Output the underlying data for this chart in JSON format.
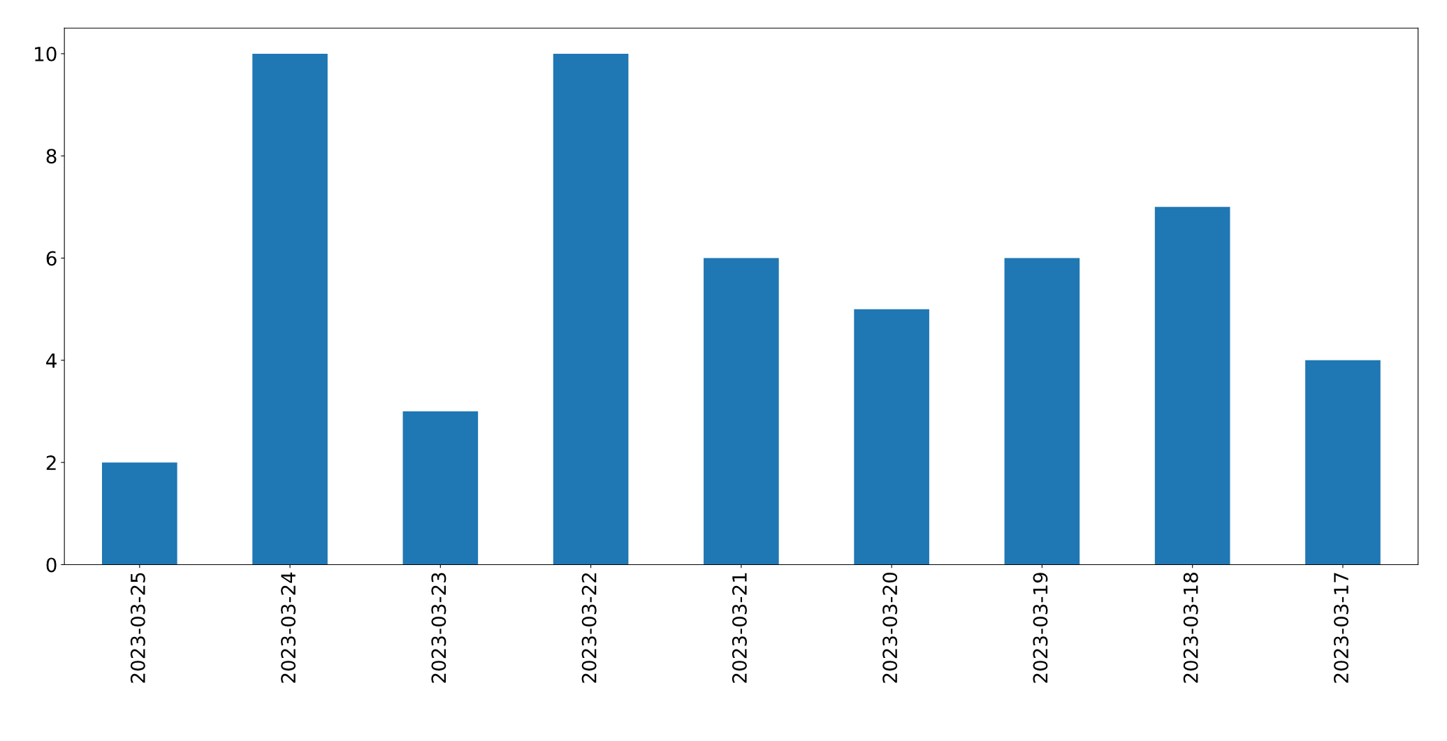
{
  "chart_data": {
    "type": "bar",
    "categories": [
      "2023-03-25",
      "2023-03-24",
      "2023-03-23",
      "2023-03-22",
      "2023-03-21",
      "2023-03-20",
      "2023-03-19",
      "2023-03-18",
      "2023-03-17"
    ],
    "values": [
      2,
      10,
      3,
      10,
      6,
      5,
      6,
      7,
      4
    ],
    "color": "#1f77b4",
    "ylim": [
      0,
      10.5
    ],
    "yticks": [
      0,
      2,
      4,
      6,
      8,
      10
    ],
    "grid": false,
    "legend": false
  }
}
